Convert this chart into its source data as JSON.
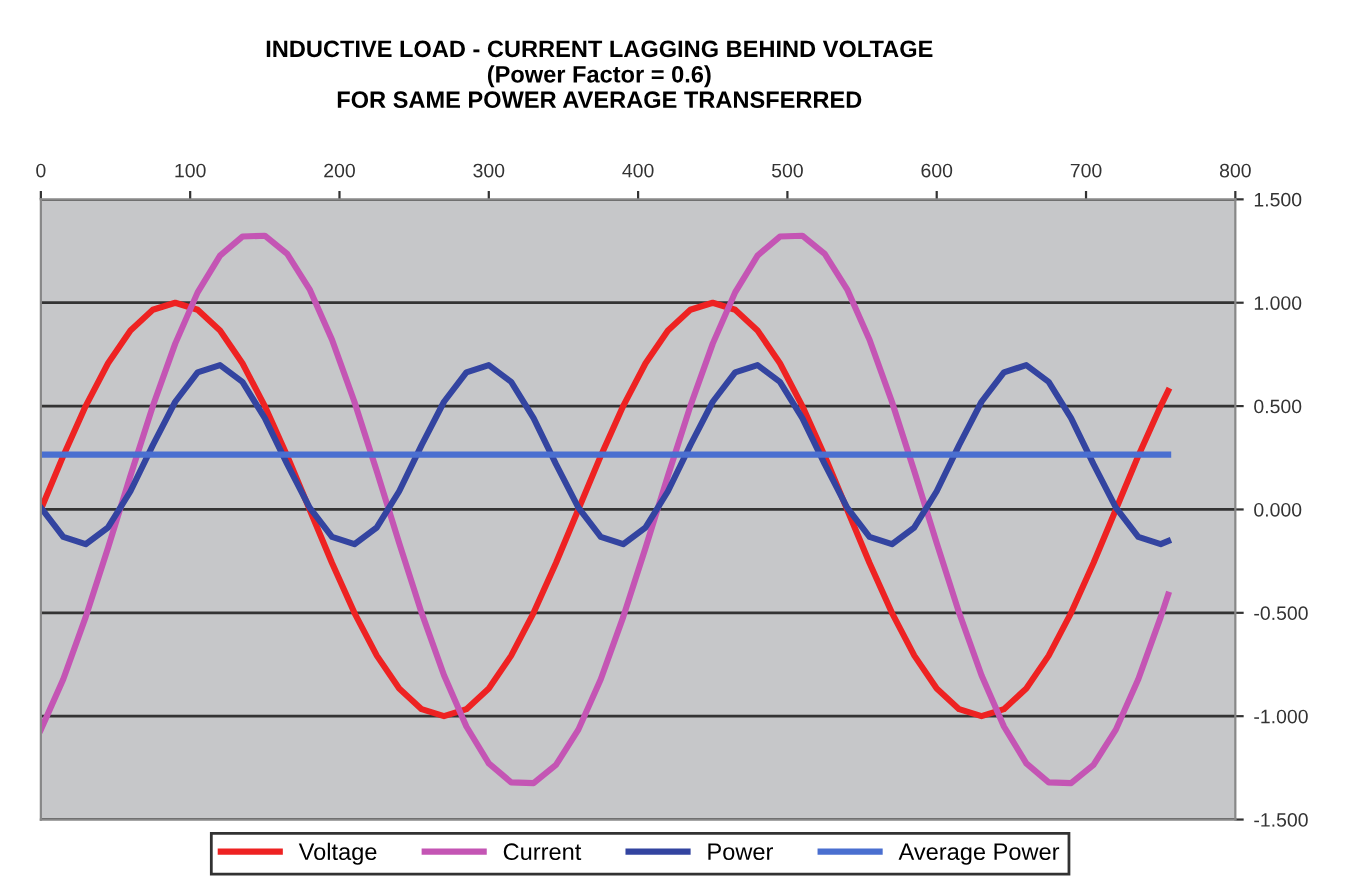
{
  "chart_data": {
    "type": "line",
    "title": "INDUCTIVE LOAD - CURRENT LAGGING BEHIND VOLTAGE\n(Power Factor = 0.6)\nFOR SAME POWER AVERAGE TRANSFERRED",
    "x": [
      0,
      15,
      30,
      45,
      60,
      75,
      90,
      105,
      120,
      135,
      150,
      165,
      180,
      195,
      210,
      225,
      240,
      255,
      270,
      285,
      300,
      315,
      330,
      345,
      360,
      375,
      390,
      405,
      420,
      435,
      450,
      465,
      480,
      495,
      510,
      525,
      540,
      555,
      570,
      585,
      600,
      615,
      630,
      645,
      660,
      675,
      690,
      705,
      720,
      735,
      750,
      755
    ],
    "series": [
      {
        "name": "Voltage",
        "color": "#ee2222",
        "values": [
          0,
          0.259,
          0.5,
          0.707,
          0.866,
          0.966,
          1,
          0.966,
          0.866,
          0.707,
          0.5,
          0.259,
          0,
          -0.259,
          -0.5,
          -0.707,
          -0.866,
          -0.966,
          -1,
          -0.966,
          -0.866,
          -0.707,
          -0.5,
          -0.259,
          0,
          0.259,
          0.5,
          0.707,
          0.866,
          0.966,
          1,
          0.966,
          0.866,
          0.707,
          0.5,
          0.259,
          0,
          -0.259,
          -0.5,
          -0.707,
          -0.866,
          -0.966,
          -1,
          -0.966,
          -0.866,
          -0.707,
          -0.5,
          -0.259,
          0,
          0.259,
          0.5,
          0.574
        ]
      },
      {
        "name": "Current",
        "color": "#c455b4",
        "values": [
          -1.065,
          -0.821,
          -0.521,
          -0.185,
          0.163,
          0.5,
          0.802,
          1.05,
          1.228,
          1.32,
          1.324,
          1.236,
          1.065,
          0.821,
          0.521,
          0.185,
          -0.163,
          -0.5,
          -0.802,
          -1.05,
          -1.228,
          -1.32,
          -1.324,
          -1.236,
          -1.065,
          -0.821,
          -0.521,
          -0.185,
          0.163,
          0.5,
          0.802,
          1.05,
          1.228,
          1.32,
          1.324,
          1.236,
          1.065,
          0.821,
          0.521,
          0.185,
          -0.163,
          -0.5,
          -0.802,
          -1.05,
          -1.228,
          -1.32,
          -1.324,
          -1.236,
          -1.065,
          -0.821,
          -0.521,
          -0.412
        ]
      },
      {
        "name": "Power",
        "color": "#3344a0",
        "values": [
          0.009,
          -0.133,
          -0.168,
          -0.087,
          0.088,
          0.311,
          0.521,
          0.663,
          0.698,
          0.617,
          0.442,
          0.219,
          0.009,
          -0.133,
          -0.168,
          -0.087,
          0.088,
          0.311,
          0.521,
          0.663,
          0.698,
          0.617,
          0.442,
          0.219,
          0.009,
          -0.133,
          -0.168,
          -0.087,
          0.088,
          0.311,
          0.521,
          0.663,
          0.698,
          0.617,
          0.442,
          0.219,
          0.009,
          -0.133,
          -0.168,
          -0.087,
          0.088,
          0.311,
          0.521,
          0.663,
          0.698,
          0.617,
          0.442,
          0.219,
          0.009,
          -0.133,
          -0.168,
          -0.153
        ]
      },
      {
        "name": "Average Power",
        "color": "#4a6fd0",
        "values": [
          0.265,
          0.265,
          0.265,
          0.265,
          0.265,
          0.265,
          0.265,
          0.265,
          0.265,
          0.265,
          0.265,
          0.265,
          0.265,
          0.265,
          0.265,
          0.265,
          0.265,
          0.265,
          0.265,
          0.265,
          0.265,
          0.265,
          0.265,
          0.265,
          0.265,
          0.265,
          0.265,
          0.265,
          0.265,
          0.265,
          0.265,
          0.265,
          0.265,
          0.265,
          0.265,
          0.265,
          0.265,
          0.265,
          0.265,
          0.265,
          0.265,
          0.265,
          0.265,
          0.265,
          0.265,
          0.265,
          0.265,
          0.265,
          0.265,
          0.265,
          0.265,
          0.265
        ]
      }
    ],
    "xlim": [
      0,
      800
    ],
    "xticks": [
      0,
      100,
      200,
      300,
      400,
      500,
      600,
      700,
      800
    ],
    "ylim": [
      -1.5,
      1.5
    ],
    "yticks": [
      {
        "value": -1.5,
        "label": "-1.500"
      },
      {
        "value": -1.0,
        "label": "-1.000"
      },
      {
        "value": -0.5,
        "label": "-0.500"
      },
      {
        "value": 0,
        "label": "0.000"
      },
      {
        "value": 0.5,
        "label": "0.500"
      },
      {
        "value": 1.0,
        "label": "1.000"
      },
      {
        "value": 1.5,
        "label": "1.500"
      }
    ],
    "grid": "y",
    "legend": "bottom",
    "marker": "none",
    "line_style": "solid"
  }
}
